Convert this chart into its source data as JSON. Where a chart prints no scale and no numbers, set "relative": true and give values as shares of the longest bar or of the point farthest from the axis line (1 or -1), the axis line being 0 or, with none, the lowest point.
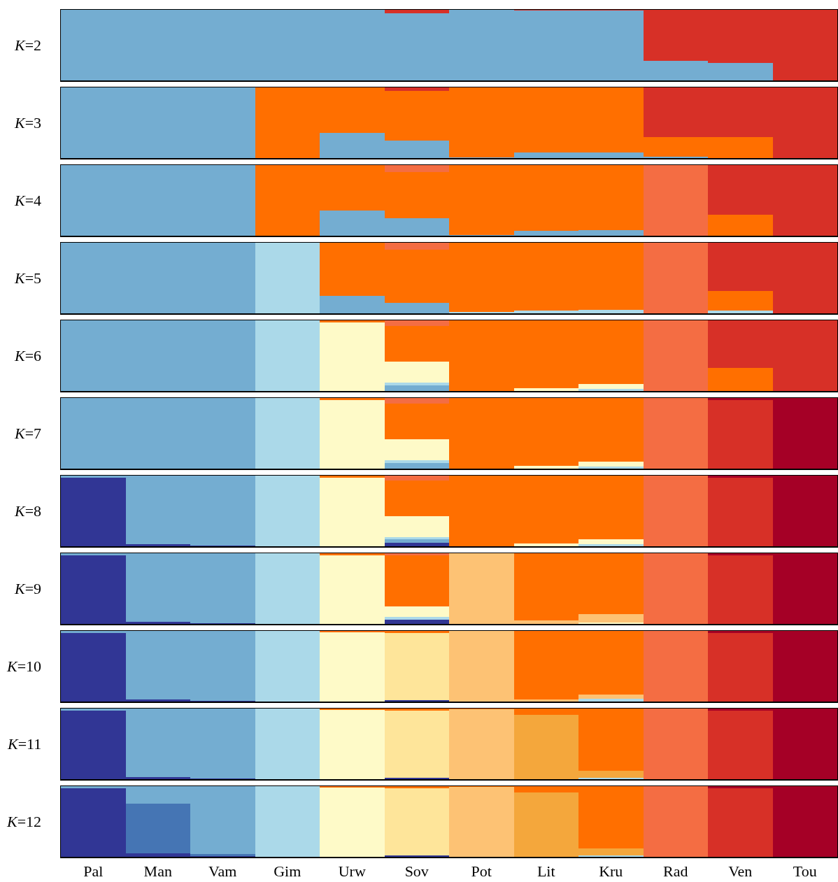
{
  "chart_data": [
    {
      "type": "bar",
      "stacked": true,
      "relative": true,
      "tick_labels": false,
      "ylabel": "K=2",
      "categories": [
        null,
        null,
        null,
        null,
        null,
        null,
        null,
        null,
        null,
        null,
        null,
        null
      ],
      "series": [
        {
          "color": "#74add1",
          "values": [
            1,
            1,
            1,
            1,
            1,
            0.95,
            1,
            0.99,
            0.99,
            0.28,
            0.25,
            0
          ]
        },
        {
          "color": "#d73027",
          "values": [
            0,
            0,
            0,
            0,
            0,
            0.05,
            0,
            0.01,
            0.01,
            0.72,
            0.75,
            1
          ]
        }
      ]
    },
    {
      "type": "bar",
      "stacked": true,
      "relative": true,
      "tick_labels": false,
      "ylabel": "K=3",
      "categories": [
        null,
        null,
        null,
        null,
        null,
        null,
        null,
        null,
        null,
        null,
        null,
        null
      ],
      "series": [
        {
          "color": "#74add1",
          "values": [
            1,
            1,
            1,
            0,
            0.36,
            0.25,
            0.01,
            0.08,
            0.08,
            0.02,
            0,
            0
          ]
        },
        {
          "color": "#ff6f00",
          "values": [
            0,
            0,
            0,
            1,
            0.64,
            0.7,
            0.99,
            0.92,
            0.92,
            0.28,
            0.3,
            0
          ]
        },
        {
          "color": "#d73027",
          "values": [
            0,
            0,
            0,
            0,
            0,
            0.05,
            0,
            0,
            0,
            0.7,
            0.7,
            1
          ]
        }
      ]
    },
    {
      "type": "bar",
      "stacked": true,
      "relative": true,
      "tick_labels": false,
      "ylabel": "K=4",
      "categories": [
        null,
        null,
        null,
        null,
        null,
        null,
        null,
        null,
        null,
        null,
        null,
        null
      ],
      "series": [
        {
          "color": "#74add1",
          "values": [
            1,
            1,
            1,
            0,
            0.36,
            0.25,
            0.01,
            0.07,
            0.08,
            0,
            0,
            0
          ]
        },
        {
          "color": "#ff6f00",
          "values": [
            0,
            0,
            0,
            1,
            0.64,
            0.65,
            0.99,
            0.93,
            0.92,
            0,
            0.3,
            0
          ]
        },
        {
          "color": "#f46d43",
          "values": [
            0,
            0,
            0,
            0,
            0,
            0.1,
            0,
            0,
            0,
            1,
            0,
            0
          ]
        },
        {
          "color": "#d73027",
          "values": [
            0,
            0,
            0,
            0,
            0,
            0,
            0,
            0,
            0,
            0,
            0.7,
            1
          ]
        }
      ]
    },
    {
      "type": "bar",
      "stacked": true,
      "relative": true,
      "tick_labels": false,
      "ylabel": "K=5",
      "categories": [
        null,
        null,
        null,
        null,
        null,
        null,
        null,
        null,
        null,
        null,
        null,
        null
      ],
      "series": [
        {
          "color": "#74add1",
          "values": [
            1,
            1,
            1,
            0,
            0.25,
            0.15,
            0,
            0,
            0,
            0,
            0,
            0
          ]
        },
        {
          "color": "#abd9e9",
          "values": [
            0,
            0,
            0,
            1,
            0,
            0,
            0.02,
            0.04,
            0.05,
            0,
            0.04,
            0
          ]
        },
        {
          "color": "#ff6f00",
          "values": [
            0,
            0,
            0,
            0,
            0.75,
            0.75,
            0.98,
            0.96,
            0.95,
            0,
            0.28,
            0
          ]
        },
        {
          "color": "#f46d43",
          "values": [
            0,
            0,
            0,
            0,
            0,
            0.1,
            0,
            0,
            0,
            1,
            0,
            0
          ]
        },
        {
          "color": "#d73027",
          "values": [
            0,
            0,
            0,
            0,
            0,
            0,
            0,
            0,
            0,
            0,
            0.68,
            1
          ]
        }
      ]
    },
    {
      "type": "bar",
      "stacked": true,
      "relative": true,
      "tick_labels": false,
      "ylabel": "K=6",
      "categories": [
        null,
        null,
        null,
        null,
        null,
        null,
        null,
        null,
        null,
        null,
        null,
        null
      ],
      "series": [
        {
          "color": "#74add1",
          "values": [
            1,
            1,
            1,
            0,
            0,
            0.08,
            0,
            0,
            0,
            0,
            0,
            0
          ]
        },
        {
          "color": "#abd9e9",
          "values": [
            0,
            0,
            0,
            1,
            0,
            0.04,
            0,
            0,
            0.03,
            0,
            0,
            0
          ]
        },
        {
          "color": "#fefac8",
          "values": [
            0,
            0,
            0,
            0,
            0.97,
            0.3,
            0,
            0.04,
            0.07,
            0,
            0,
            0
          ]
        },
        {
          "color": "#ff6f00",
          "values": [
            0,
            0,
            0,
            0,
            0.03,
            0.5,
            1,
            0.96,
            0.9,
            0,
            0.33,
            0
          ]
        },
        {
          "color": "#f46d43",
          "values": [
            0,
            0,
            0,
            0,
            0,
            0.08,
            0,
            0,
            0,
            1,
            0,
            0
          ]
        },
        {
          "color": "#d73027",
          "values": [
            0,
            0,
            0,
            0,
            0,
            0,
            0,
            0,
            0,
            0,
            0.67,
            1
          ]
        }
      ]
    },
    {
      "type": "bar",
      "stacked": true,
      "relative": true,
      "tick_labels": false,
      "ylabel": "K=7",
      "categories": [
        null,
        null,
        null,
        null,
        null,
        null,
        null,
        null,
        null,
        null,
        null,
        null
      ],
      "series": [
        {
          "color": "#74add1",
          "values": [
            1,
            1,
            1,
            0,
            0,
            0.08,
            0,
            0,
            0,
            0,
            0,
            0
          ]
        },
        {
          "color": "#abd9e9",
          "values": [
            0,
            0,
            0,
            1,
            0,
            0.04,
            0,
            0,
            0.03,
            0,
            0,
            0
          ]
        },
        {
          "color": "#fefac8",
          "values": [
            0,
            0,
            0,
            0,
            0.97,
            0.3,
            0,
            0.04,
            0.07,
            0,
            0,
            0
          ]
        },
        {
          "color": "#ff6f00",
          "values": [
            0,
            0,
            0,
            0,
            0.03,
            0.5,
            1,
            0.96,
            0.9,
            0,
            0,
            0
          ]
        },
        {
          "color": "#f46d43",
          "values": [
            0,
            0,
            0,
            0,
            0,
            0.08,
            0,
            0,
            0,
            1,
            0,
            0
          ]
        },
        {
          "color": "#d73027",
          "values": [
            0,
            0,
            0,
            0,
            0,
            0,
            0,
            0,
            0,
            0,
            0.97,
            0
          ]
        },
        {
          "color": "#a50026",
          "values": [
            0,
            0,
            0,
            0,
            0,
            0,
            0,
            0,
            0,
            0,
            0.03,
            1
          ]
        }
      ]
    },
    {
      "type": "bar",
      "stacked": true,
      "relative": true,
      "tick_labels": false,
      "ylabel": "K=8",
      "categories": [
        null,
        null,
        null,
        null,
        null,
        null,
        null,
        null,
        null,
        null,
        null,
        null
      ],
      "series": [
        {
          "color": "#313695",
          "values": [
            0.97,
            0.03,
            0.01,
            0,
            0,
            0.05,
            0,
            0,
            0,
            0,
            0,
            0
          ]
        },
        {
          "color": "#74add1",
          "values": [
            0.03,
            0.97,
            0.99,
            0,
            0,
            0.05,
            0,
            0,
            0,
            0,
            0,
            0
          ]
        },
        {
          "color": "#abd9e9",
          "values": [
            0,
            0,
            0,
            1,
            0,
            0.03,
            0,
            0,
            0.03,
            0,
            0,
            0
          ]
        },
        {
          "color": "#fefac8",
          "values": [
            0,
            0,
            0,
            0,
            0.97,
            0.3,
            0,
            0.04,
            0.07,
            0,
            0,
            0
          ]
        },
        {
          "color": "#ff6f00",
          "values": [
            0,
            0,
            0,
            0,
            0.03,
            0.5,
            1,
            0.96,
            0.9,
            0,
            0,
            0
          ]
        },
        {
          "color": "#f46d43",
          "values": [
            0,
            0,
            0,
            0,
            0,
            0.07,
            0,
            0,
            0,
            1,
            0,
            0
          ]
        },
        {
          "color": "#d73027",
          "values": [
            0,
            0,
            0,
            0,
            0,
            0,
            0,
            0,
            0,
            0,
            0.97,
            0
          ]
        },
        {
          "color": "#a50026",
          "values": [
            0,
            0,
            0,
            0,
            0,
            0,
            0,
            0,
            0,
            0,
            0.03,
            1
          ]
        }
      ]
    },
    {
      "type": "bar",
      "stacked": true,
      "relative": true,
      "tick_labels": false,
      "ylabel": "K=9",
      "categories": [
        null,
        null,
        null,
        null,
        null,
        null,
        null,
        null,
        null,
        null,
        null,
        null
      ],
      "series": [
        {
          "color": "#313695",
          "values": [
            0.97,
            0.03,
            0.01,
            0,
            0,
            0.06,
            0,
            0,
            0,
            0,
            0,
            0
          ]
        },
        {
          "color": "#74add1",
          "values": [
            0.03,
            0.97,
            0.99,
            0,
            0,
            0,
            0,
            0,
            0,
            0,
            0,
            0
          ]
        },
        {
          "color": "#abd9e9",
          "values": [
            0,
            0,
            0,
            1,
            0,
            0.04,
            0,
            0,
            0,
            0,
            0,
            0
          ]
        },
        {
          "color": "#fefac8",
          "values": [
            0,
            0,
            0,
            0,
            0.97,
            0.15,
            0,
            0,
            0.02,
            0,
            0,
            0
          ]
        },
        {
          "color": "#fdc274",
          "values": [
            0,
            0,
            0,
            0,
            0,
            0,
            1,
            0.05,
            0.12,
            0,
            0,
            0
          ]
        },
        {
          "color": "#ff6f00",
          "values": [
            0,
            0,
            0,
            0,
            0.03,
            0.72,
            0,
            0.95,
            0.86,
            0,
            0,
            0
          ]
        },
        {
          "color": "#f46d43",
          "values": [
            0,
            0,
            0,
            0,
            0,
            0.03,
            0,
            0,
            0,
            1,
            0,
            0
          ]
        },
        {
          "color": "#d73027",
          "values": [
            0,
            0,
            0,
            0,
            0,
            0,
            0,
            0,
            0,
            0,
            0.97,
            0
          ]
        },
        {
          "color": "#a50026",
          "values": [
            0,
            0,
            0,
            0,
            0,
            0,
            0,
            0,
            0,
            0,
            0.03,
            1
          ]
        }
      ]
    },
    {
      "type": "bar",
      "stacked": true,
      "relative": true,
      "tick_labels": false,
      "ylabel": "K=10",
      "categories": [
        null,
        null,
        null,
        null,
        null,
        null,
        null,
        null,
        null,
        null,
        null,
        null
      ],
      "series": [
        {
          "color": "#313695",
          "values": [
            0.97,
            0.03,
            0.01,
            0,
            0,
            0.02,
            0,
            0,
            0,
            0,
            0,
            0
          ]
        },
        {
          "color": "#74add1",
          "values": [
            0.03,
            0.97,
            0.99,
            0,
            0,
            0,
            0,
            0,
            0,
            0,
            0,
            0
          ]
        },
        {
          "color": "#abd9e9",
          "values": [
            0,
            0,
            0,
            1,
            0,
            0,
            0,
            0,
            0.04,
            0,
            0,
            0
          ]
        },
        {
          "color": "#fefac8",
          "values": [
            0,
            0,
            0,
            0,
            0.98,
            0,
            0,
            0,
            0,
            0,
            0,
            0
          ]
        },
        {
          "color": "#fee59a",
          "values": [
            0,
            0,
            0,
            0,
            0,
            0.95,
            0,
            0,
            0,
            0,
            0,
            0
          ]
        },
        {
          "color": "#fdc274",
          "values": [
            0,
            0,
            0,
            0,
            0,
            0,
            1,
            0.03,
            0.06,
            0,
            0,
            0
          ]
        },
        {
          "color": "#ff6f00",
          "values": [
            0,
            0,
            0,
            0,
            0.02,
            0.03,
            0,
            0.97,
            0.9,
            0,
            0,
            0
          ]
        },
        {
          "color": "#f46d43",
          "values": [
            0,
            0,
            0,
            0,
            0,
            0,
            0,
            0,
            0,
            1,
            0,
            0
          ]
        },
        {
          "color": "#d73027",
          "values": [
            0,
            0,
            0,
            0,
            0,
            0,
            0,
            0,
            0,
            0,
            0.97,
            0
          ]
        },
        {
          "color": "#a50026",
          "values": [
            0,
            0,
            0,
            0,
            0,
            0,
            0,
            0,
            0,
            0,
            0.03,
            1
          ]
        }
      ]
    },
    {
      "type": "bar",
      "stacked": true,
      "relative": true,
      "tick_labels": false,
      "ylabel": "K=11",
      "categories": [
        null,
        null,
        null,
        null,
        null,
        null,
        null,
        null,
        null,
        null,
        null,
        null
      ],
      "series": [
        {
          "color": "#313695",
          "values": [
            0.97,
            0.03,
            0.01,
            0,
            0,
            0.02,
            0,
            0,
            0,
            0,
            0,
            0
          ]
        },
        {
          "color": "#74add1",
          "values": [
            0.03,
            0.97,
            0.99,
            0,
            0,
            0,
            0,
            0,
            0,
            0,
            0,
            0
          ]
        },
        {
          "color": "#abd9e9",
          "values": [
            0,
            0,
            0,
            1,
            0,
            0,
            0,
            0,
            0.02,
            0,
            0,
            0
          ]
        },
        {
          "color": "#fefac8",
          "values": [
            0,
            0,
            0,
            0,
            0.98,
            0,
            0,
            0,
            0,
            0,
            0,
            0
          ]
        },
        {
          "color": "#fee59a",
          "values": [
            0,
            0,
            0,
            0,
            0,
            0.95,
            0,
            0,
            0,
            0,
            0,
            0
          ]
        },
        {
          "color": "#fdc274",
          "values": [
            0,
            0,
            0,
            0,
            0,
            0,
            0.99,
            0,
            0,
            0,
            0,
            0
          ]
        },
        {
          "color": "#f4a73c",
          "values": [
            0,
            0,
            0,
            0,
            0,
            0,
            0,
            0.91,
            0.1,
            0,
            0,
            0
          ]
        },
        {
          "color": "#ff6f00",
          "values": [
            0,
            0,
            0,
            0,
            0.02,
            0.03,
            0.01,
            0.09,
            0.88,
            0,
            0,
            0
          ]
        },
        {
          "color": "#f46d43",
          "values": [
            0,
            0,
            0,
            0,
            0,
            0,
            0,
            0,
            0,
            1,
            0,
            0
          ]
        },
        {
          "color": "#d73027",
          "values": [
            0,
            0,
            0,
            0,
            0,
            0,
            0,
            0,
            0,
            0,
            0.97,
            0
          ]
        },
        {
          "color": "#a50026",
          "values": [
            0,
            0,
            0,
            0,
            0,
            0,
            0,
            0,
            0,
            0,
            0.03,
            1
          ]
        }
      ]
    },
    {
      "type": "bar",
      "stacked": true,
      "relative": true,
      "tick_labels": "x",
      "ylabel": "K=12",
      "categories": [
        "Pal",
        "Man",
        "Vam",
        "Gim",
        "Urw",
        "Sov",
        "Pot",
        "Lit",
        "Kru",
        "Rad",
        "Ven",
        "Tou"
      ],
      "series": [
        {
          "color": "#313695",
          "values": [
            0.97,
            0.05,
            0.01,
            0,
            0,
            0.02,
            0,
            0,
            0,
            0,
            0,
            0
          ]
        },
        {
          "color": "#4575b4",
          "values": [
            0,
            0.7,
            0.03,
            0,
            0,
            0,
            0,
            0,
            0,
            0,
            0,
            0
          ]
        },
        {
          "color": "#74add1",
          "values": [
            0.03,
            0.25,
            0.96,
            0,
            0,
            0,
            0,
            0,
            0,
            0,
            0,
            0
          ]
        },
        {
          "color": "#abd9e9",
          "values": [
            0,
            0,
            0,
            1,
            0,
            0,
            0,
            0,
            0.02,
            0,
            0,
            0
          ]
        },
        {
          "color": "#fefac8",
          "values": [
            0,
            0,
            0,
            0,
            0.98,
            0,
            0,
            0,
            0,
            0,
            0,
            0
          ]
        },
        {
          "color": "#fee59a",
          "values": [
            0,
            0,
            0,
            0,
            0,
            0.95,
            0,
            0,
            0,
            0,
            0,
            0
          ]
        },
        {
          "color": "#fdc274",
          "values": [
            0,
            0,
            0,
            0,
            0,
            0,
            0.99,
            0,
            0,
            0,
            0,
            0
          ]
        },
        {
          "color": "#f4a73c",
          "values": [
            0,
            0,
            0,
            0,
            0,
            0,
            0,
            0.91,
            0.1,
            0,
            0,
            0
          ]
        },
        {
          "color": "#ff6f00",
          "values": [
            0,
            0,
            0,
            0,
            0.02,
            0.03,
            0.01,
            0.09,
            0.88,
            0,
            0,
            0
          ]
        },
        {
          "color": "#f46d43",
          "values": [
            0,
            0,
            0,
            0,
            0,
            0,
            0,
            0,
            0,
            1,
            0,
            0
          ]
        },
        {
          "color": "#d73027",
          "values": [
            0,
            0,
            0,
            0,
            0,
            0,
            0,
            0,
            0,
            0,
            0.97,
            0
          ]
        },
        {
          "color": "#a50026",
          "values": [
            0,
            0,
            0,
            0,
            0,
            0,
            0,
            0,
            0,
            0,
            0.03,
            1
          ]
        }
      ]
    }
  ]
}
